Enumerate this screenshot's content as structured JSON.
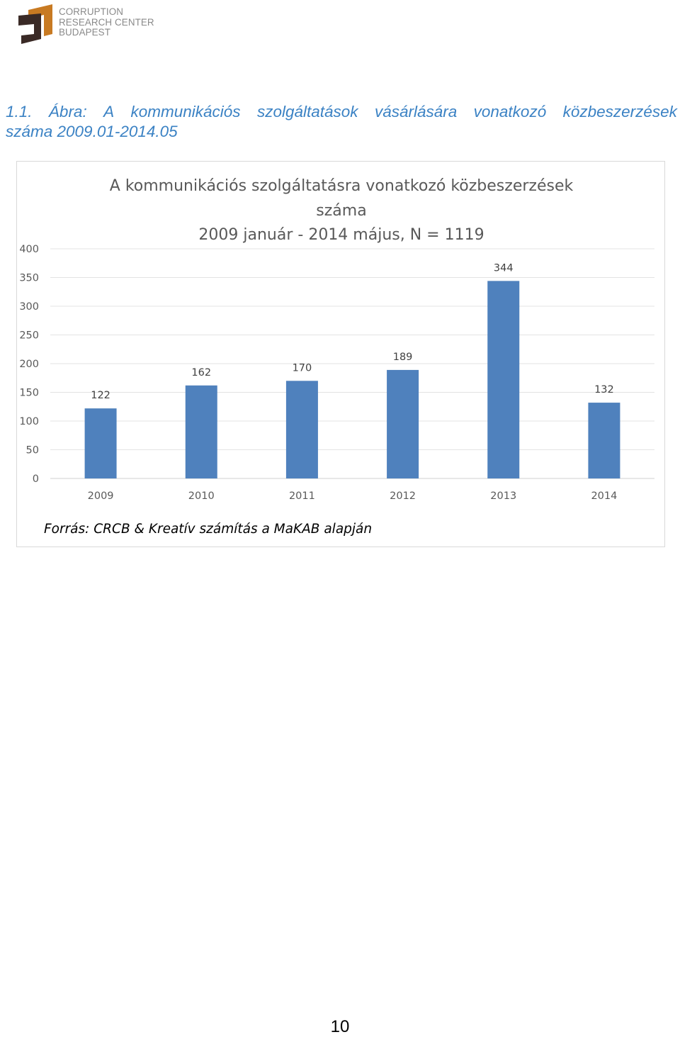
{
  "logo": {
    "line1": "CORRUPTION",
    "line2": "RESEARCH CENTER",
    "line3": "BUDAPEST",
    "colors": {
      "orange": "#c87a22",
      "dark": "#3a2a26",
      "text": "#8a8a8a"
    }
  },
  "figure_caption": {
    "words": [
      "1.1.",
      "Ábra:",
      "A",
      "kommunikációs",
      "szolgáltatások",
      "vásárlására",
      "vonatkozó",
      "közbeszerzések"
    ],
    "line2": "száma 2009.01-2014.05"
  },
  "chart_data": {
    "type": "bar",
    "title": [
      "A kommunikációs szolgáltatásra vonatkozó közbeszerzések",
      "száma",
      "2009 január - 2014 május, N = 1119"
    ],
    "categories": [
      "2009",
      "2010",
      "2011",
      "2012",
      "2013",
      "2014"
    ],
    "values": [
      122,
      162,
      170,
      189,
      344,
      132
    ],
    "data_labels": [
      "122",
      "162",
      "170",
      "189",
      "344",
      "132"
    ],
    "ylim": [
      0,
      400
    ],
    "yticks": [
      0,
      50,
      100,
      150,
      200,
      250,
      300,
      350,
      400
    ],
    "grid": true,
    "legend": "none",
    "bar_color": "#4f81bd"
  },
  "source_note": "Forrás: CRCB & Kreatív számítás a MaKAB alapján",
  "page_number": "10"
}
